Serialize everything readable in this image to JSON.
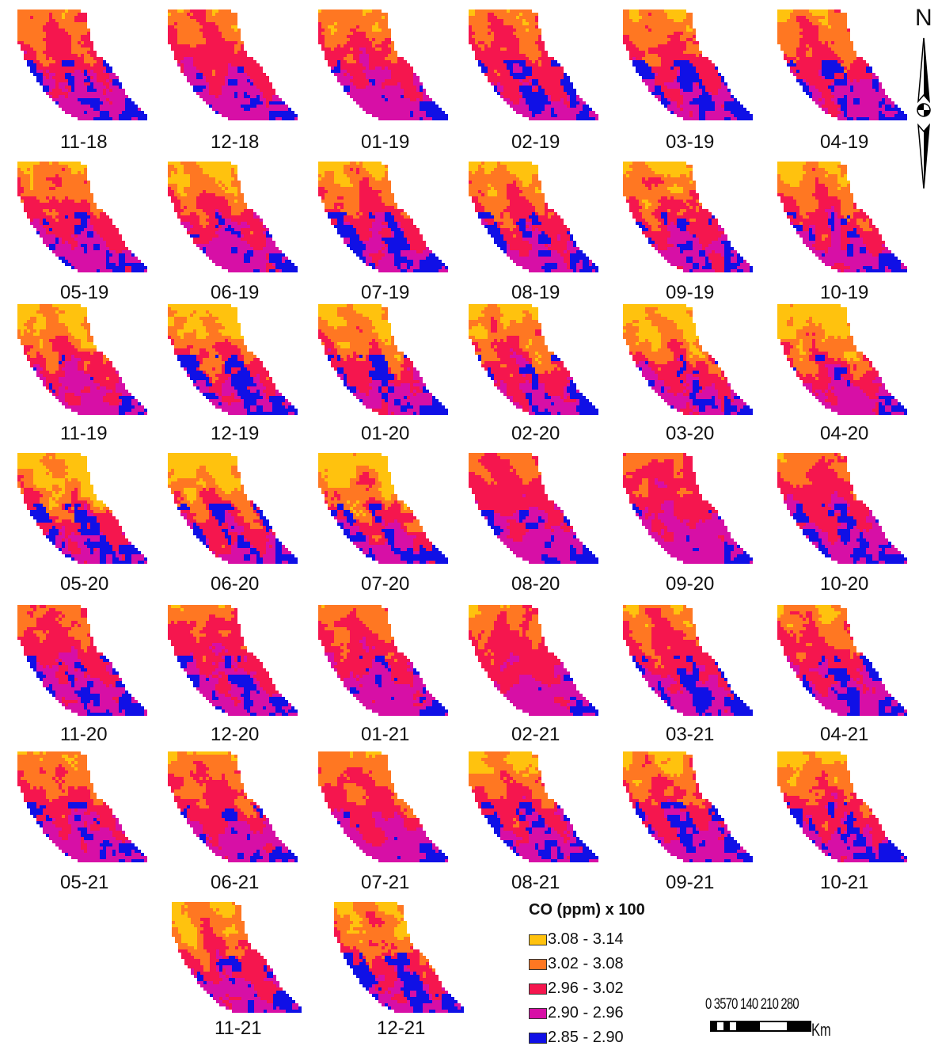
{
  "maps": [
    {
      "label": "11-18"
    },
    {
      "label": "12-18"
    },
    {
      "label": "01-19"
    },
    {
      "label": "02-19"
    },
    {
      "label": "03-19"
    },
    {
      "label": "04-19"
    },
    {
      "label": "05-19"
    },
    {
      "label": "06-19"
    },
    {
      "label": "07-19"
    },
    {
      "label": "08-19"
    },
    {
      "label": "09-19"
    },
    {
      "label": "10-19"
    },
    {
      "label": "11-19"
    },
    {
      "label": "12-19"
    },
    {
      "label": "01-20"
    },
    {
      "label": "02-20"
    },
    {
      "label": "03-20"
    },
    {
      "label": "04-20"
    },
    {
      "label": "05-20"
    },
    {
      "label": "06-20"
    },
    {
      "label": "07-20"
    },
    {
      "label": "08-20"
    },
    {
      "label": "09-20"
    },
    {
      "label": "10-20"
    },
    {
      "label": "11-20"
    },
    {
      "label": "12-20"
    },
    {
      "label": "01-21"
    },
    {
      "label": "02-21"
    },
    {
      "label": "03-21"
    },
    {
      "label": "04-21"
    },
    {
      "label": "05-21"
    },
    {
      "label": "06-21"
    },
    {
      "label": "07-21"
    },
    {
      "label": "08-21"
    },
    {
      "label": "09-21"
    },
    {
      "label": "10-21"
    },
    {
      "label": "11-21"
    },
    {
      "label": "12-21"
    }
  ],
  "legend": {
    "title": "CO (ppm) x 100",
    "items": [
      {
        "label": "3.08 - 3.14",
        "color": "#ffc20e"
      },
      {
        "label": "3.02 - 3.08",
        "color": "#ff7722"
      },
      {
        "label": "2.96 - 3.02",
        "color": "#f5164e"
      },
      {
        "label": "2.90 - 2.96",
        "color": "#d70fa6"
      },
      {
        "label": "2.85 - 2.90",
        "color": "#1010e6"
      }
    ]
  },
  "north_arrow": {
    "label": "N"
  },
  "scale_bar": {
    "ticks": "0 3570  140  210  280",
    "unit": "Km"
  }
}
